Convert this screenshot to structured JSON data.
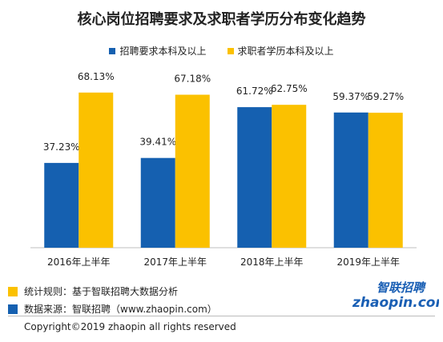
{
  "colors": {
    "blue": "#1560b0",
    "gold": "#fbc100",
    "logo_blue": "#1a5fb4",
    "logo_orange": "#f28c00"
  },
  "chart_data": {
    "type": "bar",
    "title": "核心岗位招聘要求及求职者学历分布变化趋势",
    "categories": [
      "2016年上半年",
      "2017年上半年",
      "2018年上半年",
      "2019年上半年"
    ],
    "series": [
      {
        "name": "招聘要求本科及以上",
        "values": [
          37.23,
          39.41,
          61.72,
          59.37
        ],
        "labels": [
          "37.23%",
          "39.41%",
          "61.72%",
          "59.37%"
        ],
        "color": "#1560b0"
      },
      {
        "name": "求职者学历本科及以上",
        "values": [
          68.13,
          67.18,
          62.75,
          59.27
        ],
        "labels": [
          "68.13%",
          "67.18%",
          "62.75%",
          "59.27%"
        ],
        "color": "#fbc100"
      }
    ],
    "ylim": [
      0,
      80
    ],
    "grid": false,
    "legend": "top-center"
  },
  "notes": {
    "rule": "统计规则：基于智联招聘大数据分析",
    "source": "数据来源：智联招聘（www.zhaopin.com）"
  },
  "logo": {
    "text_cn": "智联招聘",
    "text_en": "zhaopin.com"
  },
  "copyright": "Copyright©2019 zhaopin all rights reserved"
}
